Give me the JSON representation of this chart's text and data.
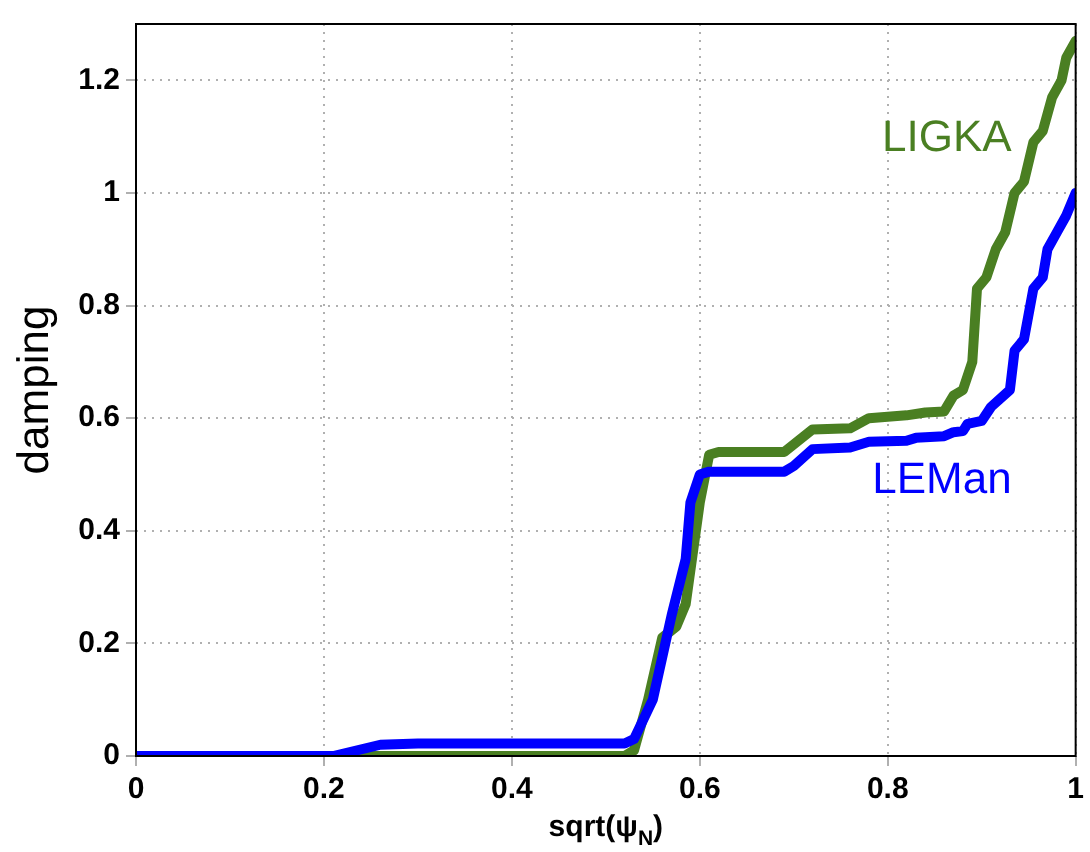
{
  "chart_data": {
    "type": "line",
    "xlabel": "sqrt(ψ$_{N}$)",
    "ylabel": "damping",
    "xlim": [
      0,
      1
    ],
    "xticks": [
      0,
      0.2,
      0.4,
      0.6,
      0.8,
      1
    ],
    "ylim": [
      0,
      1.3
    ],
    "yticks": [
      0,
      0.2,
      0.4,
      0.6,
      0.8,
      1,
      1.2
    ],
    "grid": true,
    "legend": false,
    "marker": "none",
    "line_style": "solid",
    "series": [
      {
        "name": "LEMan",
        "color": "#0000ff",
        "x": [
          0,
          0.21,
          0.26,
          0.3,
          0.52,
          0.53,
          0.55,
          0.57,
          0.585,
          0.59,
          0.6,
          0.61,
          0.69,
          0.7,
          0.72,
          0.76,
          0.78,
          0.82,
          0.83,
          0.86,
          0.87,
          0.88,
          0.885,
          0.9,
          0.91,
          0.93,
          0.935,
          0.945,
          0.955,
          0.965,
          0.97,
          0.98,
          0.99,
          1
        ],
        "values": [
          0,
          0,
          0.02,
          0.022,
          0.022,
          0.03,
          0.1,
          0.25,
          0.35,
          0.45,
          0.5,
          0.505,
          0.505,
          0.515,
          0.545,
          0.548,
          0.558,
          0.56,
          0.565,
          0.568,
          0.575,
          0.577,
          0.59,
          0.595,
          0.62,
          0.65,
          0.72,
          0.74,
          0.83,
          0.85,
          0.9,
          0.93,
          0.96,
          1
        ]
      },
      {
        "name": "LIGKA",
        "color": "#4a7f22",
        "x": [
          0,
          0.52,
          0.53,
          0.545,
          0.56,
          0.575,
          0.585,
          0.6,
          0.61,
          0.62,
          0.69,
          0.705,
          0.72,
          0.76,
          0.78,
          0.82,
          0.84,
          0.86,
          0.87,
          0.88,
          0.89,
          0.895,
          0.905,
          0.915,
          0.925,
          0.935,
          0.945,
          0.955,
          0.965,
          0.975,
          0.985,
          0.99,
          1
        ],
        "values": [
          0,
          0,
          0.01,
          0.1,
          0.21,
          0.23,
          0.27,
          0.45,
          0.535,
          0.54,
          0.54,
          0.56,
          0.58,
          0.582,
          0.6,
          0.605,
          0.61,
          0.612,
          0.64,
          0.65,
          0.7,
          0.83,
          0.85,
          0.9,
          0.93,
          1,
          1.02,
          1.09,
          1.11,
          1.17,
          1.2,
          1.24,
          1.27
        ]
      }
    ]
  }
}
